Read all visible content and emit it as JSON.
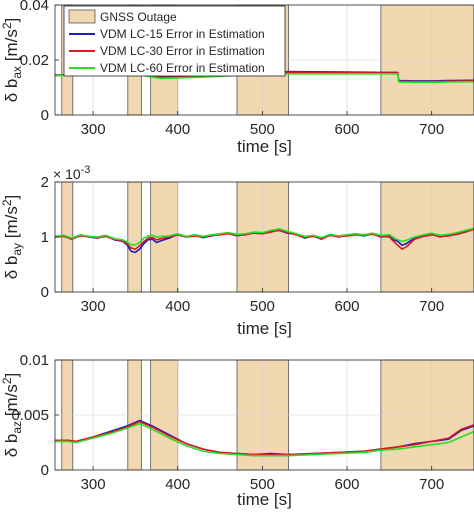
{
  "figure": {
    "legend_items": [
      {
        "label": "GNSS Outage",
        "color": "#f2d8b1",
        "kind": "patch"
      },
      {
        "label": "VDM LC-15 Error in Estimation",
        "color": "#1f1fbf",
        "kind": "line"
      },
      {
        "label": "VDM LC-30 Error in Estimation",
        "color": "#d91c1c",
        "kind": "line"
      },
      {
        "label": "VDM LC-60 Error in Estimation",
        "color": "#2bdc2b",
        "kind": "line"
      }
    ],
    "outage_color": "#f2d8b1"
  },
  "chart_data": [
    {
      "type": "line",
      "xlabel": "time [s]",
      "ylabel_parts": [
        "δ b",
        "ax",
        " [m/s",
        "2",
        "]"
      ],
      "xlim": [
        255,
        750
      ],
      "ylim": [
        0,
        0.04
      ],
      "xticks": [
        300,
        400,
        500,
        600,
        700
      ],
      "xtick_labels": [
        "300",
        "400",
        "500",
        "600",
        "700"
      ],
      "yticks": [
        0,
        0.02,
        0.04
      ],
      "ytick_labels": [
        "0",
        "0.02",
        "0.04"
      ],
      "exponent_label": "",
      "grid": true,
      "legend_position": "top-left",
      "outages": [
        [
          263,
          276
        ],
        [
          341,
          357
        ],
        [
          368,
          400
        ],
        [
          470,
          531
        ],
        [
          640,
          750
        ]
      ],
      "x": [
        255,
        270,
        290,
        310,
        330,
        345,
        355,
        365,
        380,
        400,
        430,
        470,
        500,
        530,
        560,
        600,
        640,
        660,
        661,
        680,
        700,
        720,
        750
      ],
      "series": [
        {
          "name": "VDM LC-15 Error in Estimation",
          "color": "#1f1fbf",
          "values": [
            0.0145,
            0.0146,
            0.0148,
            0.0149,
            0.015,
            0.0148,
            0.015,
            0.0144,
            0.0138,
            0.0139,
            0.0141,
            0.0148,
            0.015,
            0.0158,
            0.0157,
            0.0156,
            0.0155,
            0.0155,
            0.0125,
            0.0124,
            0.0124,
            0.0125,
            0.0126
          ]
        },
        {
          "name": "VDM LC-30 Error in Estimation",
          "color": "#d91c1c",
          "values": [
            0.0144,
            0.0146,
            0.0148,
            0.0148,
            0.0149,
            0.0147,
            0.0148,
            0.0142,
            0.0136,
            0.0137,
            0.014,
            0.0146,
            0.0149,
            0.0156,
            0.0155,
            0.0154,
            0.0153,
            0.0153,
            0.0123,
            0.0122,
            0.0122,
            0.0123,
            0.0124
          ]
        },
        {
          "name": "VDM LC-60 Error in Estimation",
          "color": "#2bdc2b",
          "values": [
            0.0143,
            0.0145,
            0.0147,
            0.0147,
            0.0148,
            0.0146,
            0.0147,
            0.014,
            0.0133,
            0.0135,
            0.0138,
            0.0144,
            0.0147,
            0.015,
            0.015,
            0.015,
            0.015,
            0.015,
            0.012,
            0.0119,
            0.0119,
            0.012,
            0.0121
          ]
        }
      ]
    },
    {
      "type": "line",
      "xlabel": "time [s]",
      "ylabel_parts": [
        "δ b",
        "ay",
        " [m/s",
        "2",
        "]"
      ],
      "xlim": [
        255,
        750
      ],
      "ylim": [
        0,
        2
      ],
      "xticks": [
        300,
        400,
        500,
        600,
        700
      ],
      "xtick_labels": [
        "300",
        "400",
        "500",
        "600",
        "700"
      ],
      "yticks": [
        0,
        1,
        2
      ],
      "ytick_labels": [
        "0",
        "1",
        "2"
      ],
      "exponent_label": "× 10",
      "exponent_power": "-3",
      "grid": true,
      "outages": [
        [
          263,
          276
        ],
        [
          341,
          357
        ],
        [
          368,
          400
        ],
        [
          470,
          531
        ],
        [
          640,
          750
        ]
      ],
      "x": [
        255,
        265,
        275,
        285,
        295,
        305,
        315,
        325,
        335,
        340,
        345,
        350,
        355,
        360,
        365,
        370,
        375,
        380,
        390,
        400,
        410,
        420,
        430,
        440,
        450,
        460,
        470,
        480,
        490,
        500,
        510,
        520,
        530,
        540,
        550,
        560,
        570,
        580,
        590,
        600,
        610,
        620,
        630,
        640,
        650,
        655,
        660,
        665,
        670,
        680,
        690,
        700,
        710,
        720,
        730,
        740,
        750
      ],
      "series": [
        {
          "name": "VDM LC-15 Error in Estimation",
          "color": "#1f1fbf",
          "values": [
            1.0,
            1.02,
            0.96,
            1.03,
            1.0,
            0.98,
            1.02,
            0.95,
            0.92,
            0.86,
            0.74,
            0.72,
            0.78,
            0.88,
            0.95,
            0.96,
            0.9,
            0.93,
            0.98,
            1.05,
            1.0,
            1.03,
            0.99,
            1.02,
            1.05,
            1.07,
            1.03,
            1.04,
            1.08,
            1.06,
            1.1,
            1.12,
            1.07,
            1.05,
            0.98,
            1.02,
            0.96,
            1.04,
            1.0,
            1.03,
            1.05,
            1.02,
            1.06,
            1.0,
            1.02,
            0.95,
            0.92,
            0.85,
            0.88,
            0.98,
            1.02,
            1.05,
            1.0,
            1.03,
            1.06,
            1.1,
            1.15
          ]
        },
        {
          "name": "VDM LC-30 Error in Estimation",
          "color": "#d91c1c",
          "values": [
            1.0,
            1.01,
            0.97,
            1.02,
            1.01,
            0.99,
            1.01,
            0.96,
            0.93,
            0.88,
            0.8,
            0.78,
            0.84,
            0.92,
            0.98,
            0.99,
            0.95,
            0.97,
            1.0,
            1.04,
            1.0,
            1.02,
            1.0,
            1.03,
            1.04,
            1.06,
            1.02,
            1.05,
            1.07,
            1.06,
            1.09,
            1.13,
            1.08,
            1.04,
            0.99,
            1.01,
            0.97,
            1.03,
            1.01,
            1.02,
            1.04,
            1.03,
            1.05,
            1.01,
            1.0,
            0.92,
            0.85,
            0.78,
            0.82,
            0.96,
            1.01,
            1.04,
            1.01,
            1.02,
            1.05,
            1.09,
            1.14
          ]
        },
        {
          "name": "VDM LC-60 Error in Estimation",
          "color": "#2bdc2b",
          "values": [
            1.01,
            1.03,
            0.98,
            1.04,
            1.01,
            1.0,
            1.03,
            0.97,
            0.95,
            0.91,
            0.86,
            0.86,
            0.9,
            0.98,
            1.02,
            1.03,
            1.0,
            1.01,
            1.02,
            1.06,
            1.01,
            1.04,
            1.01,
            1.04,
            1.06,
            1.08,
            1.05,
            1.06,
            1.09,
            1.08,
            1.12,
            1.15,
            1.1,
            1.06,
            1.01,
            1.03,
            0.99,
            1.05,
            1.02,
            1.04,
            1.06,
            1.04,
            1.07,
            1.03,
            1.04,
            0.99,
            0.95,
            0.92,
            0.94,
            1.0,
            1.04,
            1.07,
            1.03,
            1.05,
            1.08,
            1.12,
            1.16
          ]
        }
      ]
    },
    {
      "type": "line",
      "xlabel": "time [s]",
      "ylabel_parts": [
        "δ b",
        "az",
        " [m/s",
        "2",
        "]"
      ],
      "xlim": [
        255,
        750
      ],
      "ylim": [
        0,
        0.01
      ],
      "xticks": [
        300,
        400,
        500,
        600,
        700
      ],
      "xtick_labels": [
        "300",
        "400",
        "500",
        "600",
        "700"
      ],
      "yticks": [
        0,
        0.005,
        0.01
      ],
      "ytick_labels": [
        "0",
        "0.005",
        "0.01"
      ],
      "exponent_label": "",
      "grid": true,
      "outages": [
        [
          263,
          276
        ],
        [
          341,
          357
        ],
        [
          368,
          400
        ],
        [
          470,
          531
        ],
        [
          640,
          750
        ]
      ],
      "x": [
        255,
        270,
        280,
        300,
        320,
        340,
        355,
        370,
        390,
        410,
        430,
        450,
        470,
        490,
        510,
        530,
        560,
        590,
        620,
        640,
        660,
        680,
        700,
        720,
        735,
        750
      ],
      "series": [
        {
          "name": "VDM LC-15 Error in Estimation",
          "color": "#1f1fbf",
          "values": [
            0.0027,
            0.0027,
            0.0026,
            0.003,
            0.0035,
            0.004,
            0.0045,
            0.004,
            0.0032,
            0.0024,
            0.0019,
            0.0016,
            0.0015,
            0.0014,
            0.0015,
            0.0014,
            0.0015,
            0.0016,
            0.0017,
            0.0019,
            0.0021,
            0.0024,
            0.0026,
            0.0028,
            0.0036,
            0.004
          ]
        },
        {
          "name": "VDM LC-30 Error in Estimation",
          "color": "#d91c1c",
          "values": [
            0.0027,
            0.0027,
            0.0026,
            0.003,
            0.0034,
            0.0039,
            0.0044,
            0.0039,
            0.0031,
            0.0024,
            0.0019,
            0.0016,
            0.0015,
            0.0014,
            0.0014,
            0.0014,
            0.0015,
            0.0016,
            0.0017,
            0.0019,
            0.0021,
            0.0023,
            0.0026,
            0.0029,
            0.0037,
            0.0041
          ]
        },
        {
          "name": "VDM LC-60 Error in Estimation",
          "color": "#2bdc2b",
          "values": [
            0.0026,
            0.0026,
            0.0025,
            0.0029,
            0.0033,
            0.0038,
            0.0042,
            0.0037,
            0.0029,
            0.0022,
            0.0017,
            0.0015,
            0.0014,
            0.0013,
            0.0013,
            0.0013,
            0.0014,
            0.0015,
            0.0016,
            0.0018,
            0.0019,
            0.0021,
            0.0023,
            0.0025,
            0.003,
            0.0035
          ]
        }
      ]
    }
  ]
}
